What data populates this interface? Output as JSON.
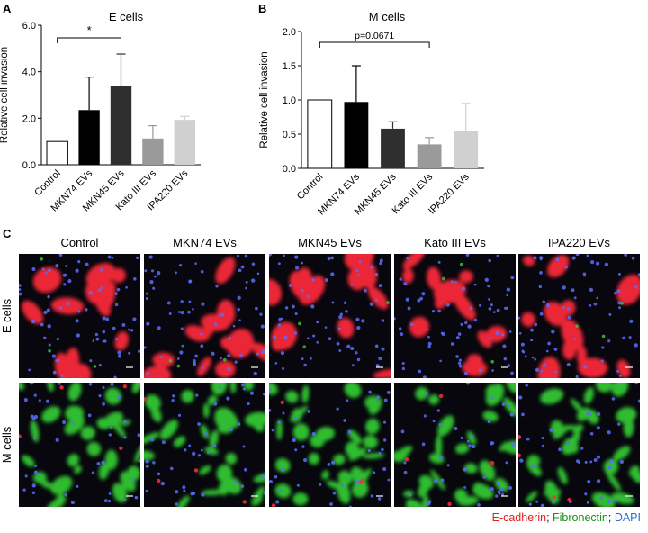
{
  "panels": {
    "A": {
      "letter": "A"
    },
    "B": {
      "letter": "B"
    },
    "C": {
      "letter": "C"
    }
  },
  "chart_data": [
    {
      "type": "bar",
      "title": "E cells",
      "ylabel": "Relative cell invasion",
      "xlabel": "",
      "categories": [
        "Control",
        "MKN74 EVs",
        "MKN45 EVs",
        "Kato III EVs",
        "IPA220 EVs"
      ],
      "values": [
        1.0,
        2.35,
        3.38,
        1.13,
        1.93
      ],
      "errors": [
        0.0,
        1.42,
        1.38,
        0.55,
        0.15
      ],
      "bar_colors": [
        "#ffffff",
        "#000000",
        "#2f2f2f",
        "#9a9a9a",
        "#d0d0d0"
      ],
      "ylim": [
        0,
        6
      ],
      "yticks": [
        "0.0",
        "2.0",
        "4.0",
        "6.0"
      ],
      "significance": {
        "from": "Control",
        "to": "MKN45 EVs",
        "label": "*"
      }
    },
    {
      "type": "bar",
      "title": "M cells",
      "ylabel": "Relative cell invasion",
      "xlabel": "",
      "categories": [
        "Control",
        "MKN74 EVs",
        "MKN45 EVs",
        "Kato III EVs",
        "IPA220 EVs"
      ],
      "values": [
        1.0,
        0.97,
        0.58,
        0.35,
        0.55
      ],
      "errors": [
        0.0,
        0.53,
        0.1,
        0.1,
        0.4
      ],
      "bar_colors": [
        "#ffffff",
        "#000000",
        "#2f2f2f",
        "#9a9a9a",
        "#d0d0d0"
      ],
      "ylim": [
        0,
        2
      ],
      "yticks": [
        "0.0",
        "0.5",
        "1.0",
        "1.5",
        "2.0"
      ],
      "significance": {
        "from": "Control",
        "to": "Kato III EVs",
        "label": "p=0.0671"
      }
    }
  ],
  "microscopy": {
    "columns": [
      "Control",
      "MKN74 EVs",
      "MKN45 EVs",
      "Kato III EVs",
      "IPA220 EVs"
    ],
    "rows": [
      "E cells",
      "M cells"
    ],
    "legend": [
      {
        "text": "E-cadherin",
        "color": "#e0201c"
      },
      {
        "text": "; ",
        "color": "#222222"
      },
      {
        "text": "Fibronectin",
        "color": "#1a8f1a"
      },
      {
        "text": "; ",
        "color": "#222222"
      },
      {
        "text": "DAPI",
        "color": "#2a6fd0"
      }
    ],
    "stain_colors": {
      "ecadherin": "#ff2a3a",
      "fibronectin": "#35d035",
      "dapi": "#5a6cff"
    }
  }
}
